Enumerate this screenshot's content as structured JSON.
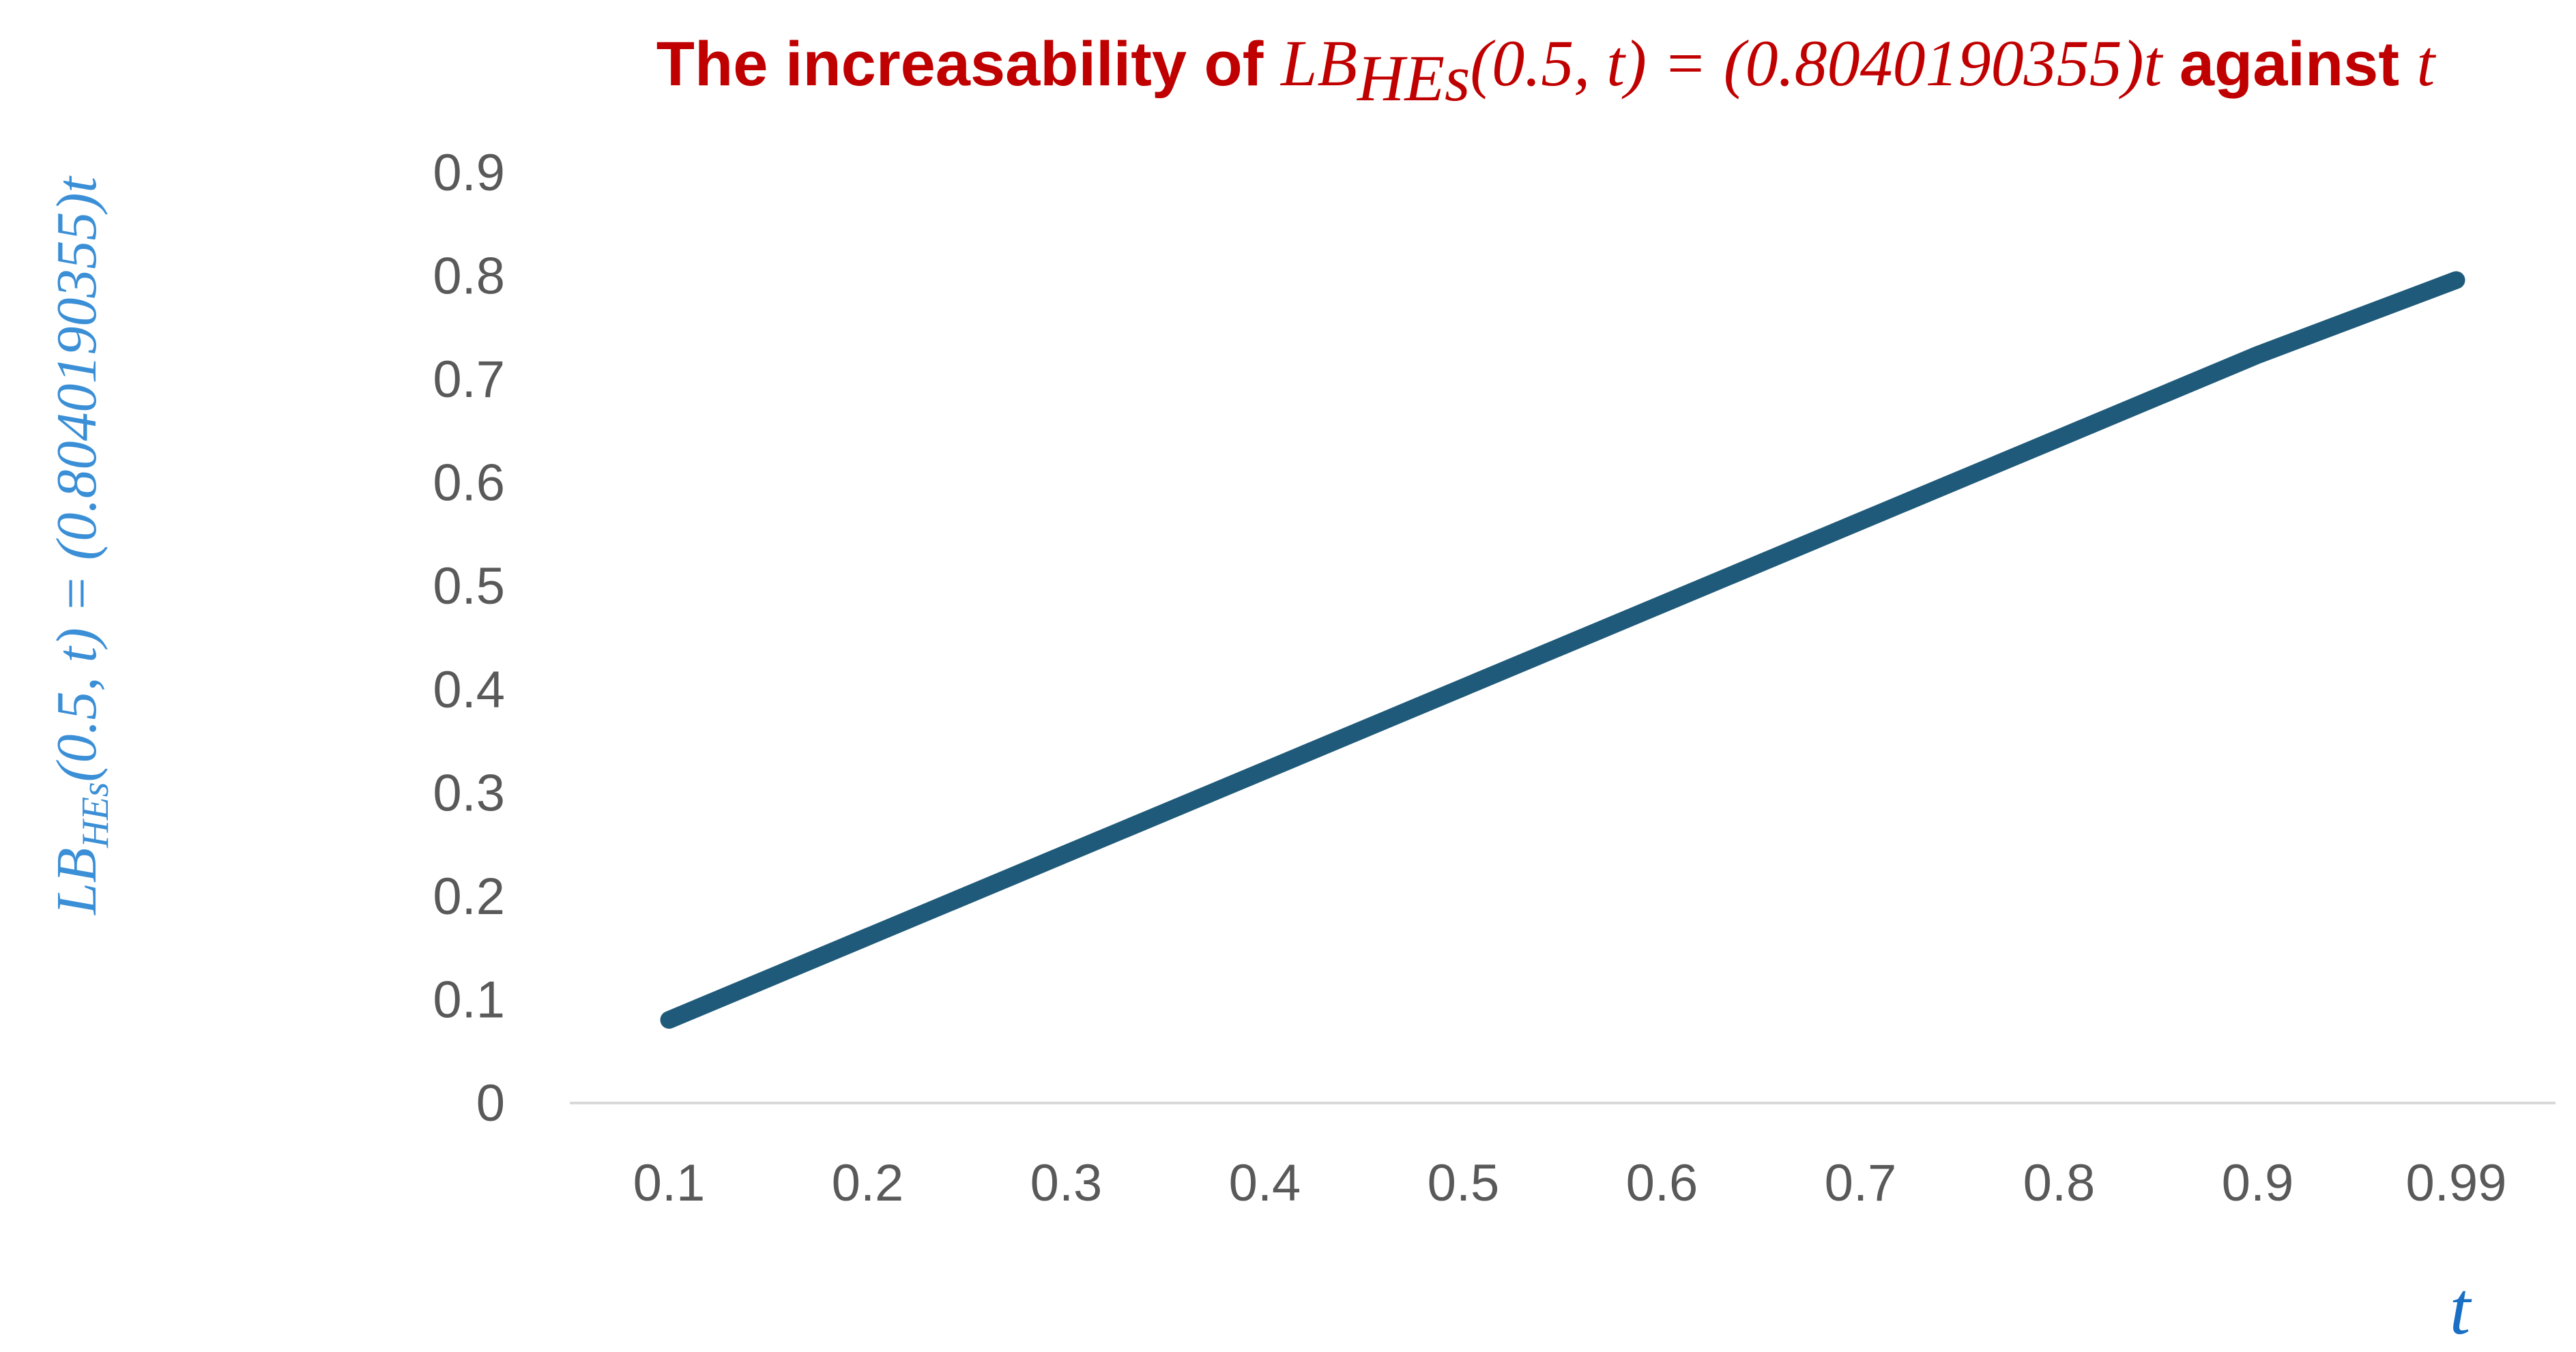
{
  "chart_data": {
    "type": "line",
    "title": {
      "prefix": "The increasability of ",
      "func": "LB",
      "func_sub": "HEs",
      "args": "(0.5, t) = ",
      "coef": "(0.8040190355)",
      "var": "t",
      "middle": " against ",
      "var2": "t"
    },
    "xlabel": "t",
    "ylabel": {
      "func": "LB",
      "func_sub": "HEs",
      "rest": "(0.5, t) = ",
      "coef": "(0.8040190355)t"
    },
    "categories": [
      "0.1",
      "0.2",
      "0.3",
      "0.4",
      "0.5",
      "0.6",
      "0.7",
      "0.8",
      "0.9",
      "0.99"
    ],
    "series": [
      {
        "values": [
          0.0804,
          0.1608,
          0.2412,
          0.3216,
          0.402,
          0.4824,
          0.5628,
          0.6432,
          0.7236,
          0.796
        ]
      }
    ],
    "ylim": [
      0,
      0.9
    ],
    "yticks": [
      "0",
      "0.1",
      "0.2",
      "0.3",
      "0.4",
      "0.5",
      "0.6",
      "0.7",
      "0.8",
      "0.9"
    ],
    "grid": false,
    "legend": "none",
    "colors": {
      "line": "#1f5a7a",
      "title": "#c00000",
      "axis_var": "#1a6fc4",
      "ylabel": "#3b8fd6",
      "ticks": "#595959",
      "axis_line": "#d9d9d9"
    }
  }
}
